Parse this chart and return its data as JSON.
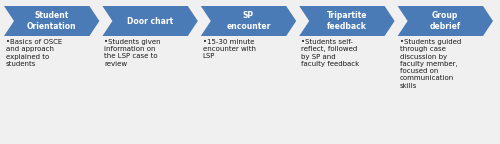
{
  "steps": [
    {
      "label": "Student\nOrientation",
      "bullet": "•Basics of OSCE\nand approach\nexplained to\nstudents"
    },
    {
      "label": "Door chart",
      "bullet": "•Students given\ninformation on\nthe LSP case to\nreview"
    },
    {
      "label": "SP\nencounter",
      "bullet": "•15-30 minute\nencounter with\nLSP"
    },
    {
      "label": "Tripartite\nfeedback",
      "bullet": "•Students self-\nreflect, followed\nby SP and\nfaculty feedback"
    },
    {
      "label": "Group\ndebrief",
      "bullet": "•Students guided\nthrough case\ndiscussion by\nfaculty member,\nfocused on\ncommunication\nskills"
    }
  ],
  "chevron_color": "#4A7BB7",
  "chevron_text_color": "#FFFFFF",
  "bullet_text_color": "#1a1a1a",
  "background_color": "#F0F0F0",
  "n_steps": 5,
  "fig_width": 5.0,
  "fig_height": 1.44,
  "dpi": 100
}
